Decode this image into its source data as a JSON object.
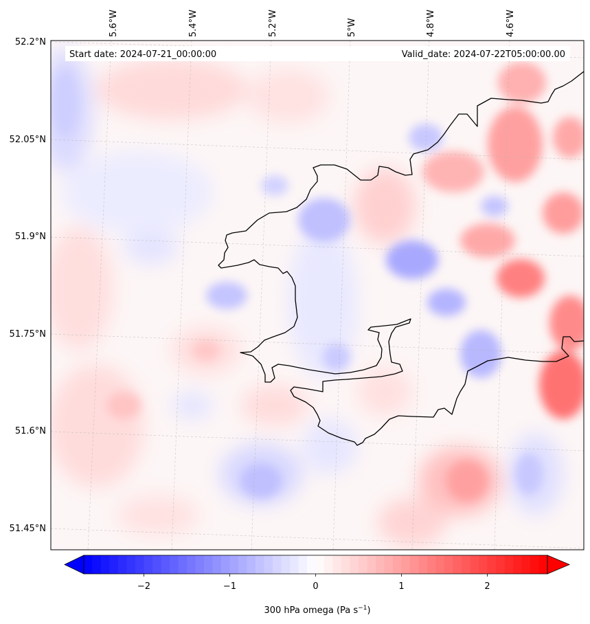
{
  "map": {
    "type": "filled-contour",
    "start_date_text": "Start date: 2024-07-21_00:00:00",
    "valid_date_text": "Valid_date: 2024-07-22T05:00:00.00",
    "longitude_labels": [
      "5.6°W",
      "5.4°W",
      "5.2°W",
      "5°W",
      "4.8°W",
      "4.6°W"
    ],
    "latitude_labels": [
      "52.2°N",
      "52.05°N",
      "51.9°N",
      "51.75°N",
      "51.6°N",
      "51.45°N"
    ],
    "gridlines": true,
    "coastline": true
  },
  "colorbar": {
    "label_main": "300 hPa omega (Pa s",
    "label_exp": "−1",
    "label_close": ")",
    "range": [
      -2.7,
      2.7
    ],
    "extend": "both",
    "colormap": "bwr",
    "ticks": [
      {
        "value": -2,
        "label": "−2"
      },
      {
        "value": -1,
        "label": "−1"
      },
      {
        "value": 0,
        "label": "0"
      },
      {
        "value": 1,
        "label": "1"
      },
      {
        "value": 2,
        "label": "2"
      }
    ],
    "colors": {
      "negative": "#0000ff",
      "zero": "#ffffff",
      "positive": "#ff0000"
    }
  },
  "field_features": [
    {
      "sign": "positive",
      "value": 1.9,
      "area": "east-coast-centre"
    },
    {
      "sign": "positive",
      "value": 2.2,
      "area": "east-edge-south"
    },
    {
      "sign": "positive",
      "value": 1.6,
      "area": "east-edge-north"
    },
    {
      "sign": "positive",
      "value": 1.3,
      "area": "north-east-interior"
    },
    {
      "sign": "positive",
      "value": 1.0,
      "area": "south-east"
    },
    {
      "sign": "positive",
      "value": 0.7,
      "area": "north-west"
    },
    {
      "sign": "positive",
      "value": 0.6,
      "area": "south-west"
    },
    {
      "sign": "negative",
      "value": -1.0,
      "area": "central-east"
    },
    {
      "sign": "negative",
      "value": -0.9,
      "area": "central-north-bay"
    },
    {
      "sign": "negative",
      "value": -0.8,
      "area": "east-of-estuary"
    },
    {
      "sign": "negative",
      "value": -0.8,
      "area": "south-east-channel"
    },
    {
      "sign": "negative",
      "value": -0.5,
      "area": "west-edge-north"
    },
    {
      "sign": "negative",
      "value": -0.6,
      "area": "south-central"
    }
  ]
}
